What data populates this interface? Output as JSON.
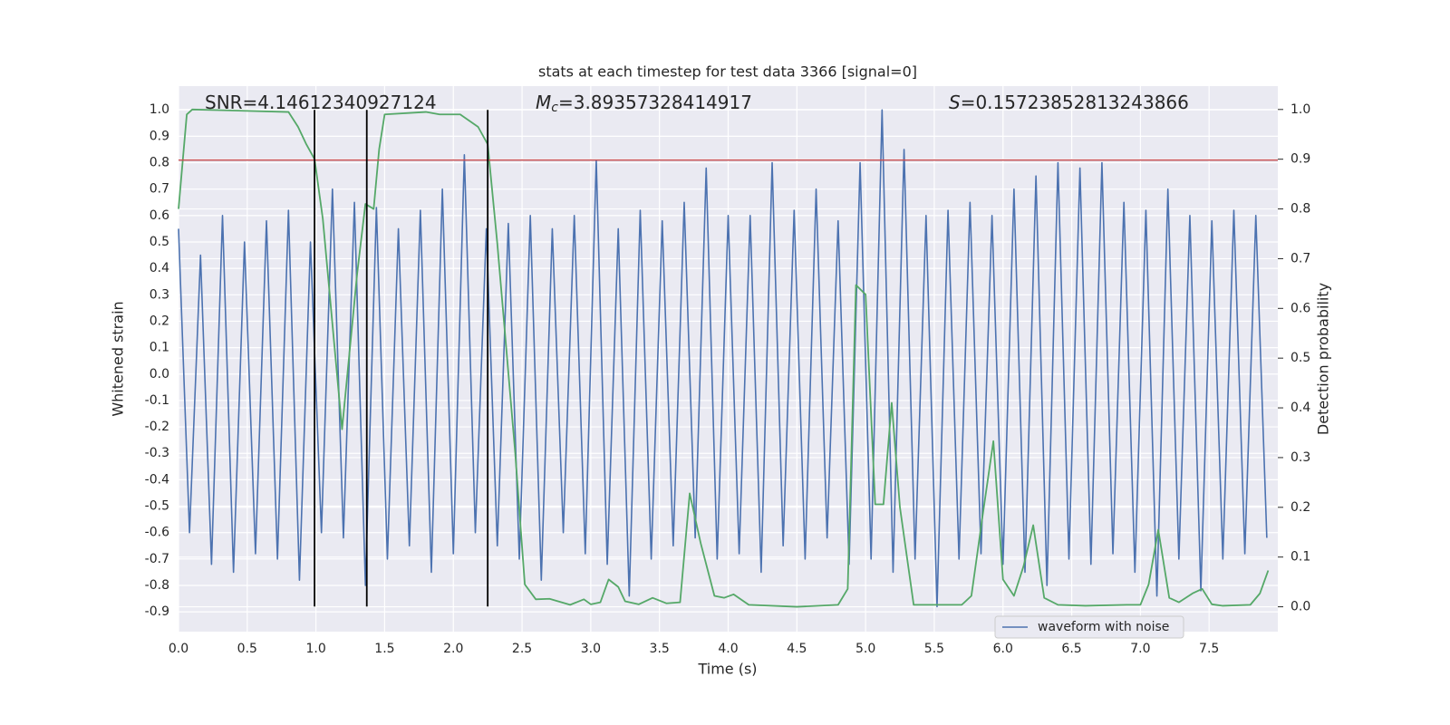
{
  "chart_data": {
    "type": "line",
    "title": "stats at each timestep for test data 3366 [signal=0]",
    "xlabel": "Time (s)",
    "ylabel": "Whitened strain",
    "y2label": "Detection probability",
    "annotations": [
      {
        "text": "SNR=4.14612340927124"
      },
      {
        "symbol": "M",
        "subscript": "c",
        "text": "=3.89357328414917"
      },
      {
        "symbol": "S",
        "text": "=0.15723852813243866"
      }
    ],
    "xlim": [
      0,
      8
    ],
    "ylim": [
      -0.975,
      1.09
    ],
    "y2lim": [
      -0.05,
      1.047
    ],
    "xticks": [
      {
        "value": 0,
        "label": "0.0"
      },
      0.5,
      {
        "value": 1,
        "label": "1.0"
      },
      1.5,
      {
        "value": 2,
        "label": "2.0"
      },
      2.5,
      {
        "value": 3,
        "label": "3.0"
      },
      3.5,
      {
        "value": 4,
        "label": "4.0"
      },
      4.5,
      {
        "value": 5,
        "label": "5.0"
      },
      5.5,
      {
        "value": 6,
        "label": "6.0"
      },
      6.5,
      {
        "value": 7,
        "label": "7.0"
      },
      7.5
    ],
    "yticks": [
      -0.9,
      -0.8,
      -0.7,
      -0.6,
      -0.5,
      -0.4,
      -0.3,
      -0.2,
      -0.1,
      {
        "value": 0,
        "label": "0.0"
      },
      0.1,
      0.2,
      0.3,
      0.4,
      0.5,
      0.6,
      0.7,
      0.8,
      0.9,
      {
        "value": 1,
        "label": "1.0"
      }
    ],
    "y2ticks": [
      {
        "value": 0,
        "label": "0.0"
      },
      0.1,
      0.2,
      0.3,
      0.4,
      0.5,
      0.6,
      0.7,
      0.8,
      0.9,
      {
        "value": 1,
        "label": "1.0"
      }
    ],
    "grid": true,
    "legend_position": "lower right",
    "series": [
      {
        "name": "waveform with noise",
        "color": "#4c72b0",
        "x": [
          0,
          0.08,
          0.16,
          0.24,
          0.32,
          0.4,
          0.48,
          0.56,
          0.64,
          0.72,
          0.8,
          0.88,
          0.96,
          1.04,
          1.12,
          1.2,
          1.28,
          1.36,
          1.44,
          1.52,
          1.6,
          1.68,
          1.76,
          1.84,
          1.92,
          2,
          2.08,
          2.16,
          2.24,
          2.32,
          2.4,
          2.48,
          2.56,
          2.64,
          2.72,
          2.8,
          2.88,
          2.96,
          3.04,
          3.12,
          3.2,
          3.28,
          3.36,
          3.44,
          3.52,
          3.6,
          3.68,
          3.76,
          3.84,
          3.92,
          4,
          4.08,
          4.16,
          4.24,
          4.32,
          4.4,
          4.48,
          4.56,
          4.64,
          4.72,
          4.8,
          4.88,
          4.96,
          5.04,
          5.12,
          5.2,
          5.28,
          5.36,
          5.44,
          5.52,
          5.6,
          5.68,
          5.76,
          5.84,
          5.92,
          6,
          6.08,
          6.16,
          6.24,
          6.32,
          6.4,
          6.48,
          6.56,
          6.64,
          6.72,
          6.8,
          6.88,
          6.96,
          7.04,
          7.12,
          7.2,
          7.28,
          7.36,
          7.44,
          7.52,
          7.6,
          7.68,
          7.76,
          7.84,
          7.92
        ],
        "values": [
          0.55,
          -0.6,
          0.45,
          -0.72,
          0.6,
          -0.75,
          0.5,
          -0.68,
          0.58,
          -0.7,
          0.62,
          -0.78,
          0.5,
          -0.6,
          0.7,
          -0.62,
          0.65,
          -0.8,
          0.63,
          -0.7,
          0.55,
          -0.65,
          0.62,
          -0.75,
          0.7,
          -0.68,
          0.83,
          -0.6,
          0.55,
          -0.65,
          0.57,
          -0.7,
          0.6,
          -0.78,
          0.55,
          -0.6,
          0.6,
          -0.68,
          0.81,
          -0.72,
          0.55,
          -0.84,
          0.62,
          -0.7,
          0.58,
          -0.65,
          0.65,
          -0.62,
          0.78,
          -0.7,
          0.6,
          -0.68,
          0.6,
          -0.75,
          0.8,
          -0.65,
          0.62,
          -0.7,
          0.7,
          -0.62,
          0.58,
          -0.72,
          0.8,
          -0.7,
          1.0,
          -0.75,
          0.85,
          -0.7,
          0.6,
          -0.88,
          0.62,
          -0.7,
          0.65,
          -0.68,
          0.6,
          -0.72,
          0.7,
          -0.75,
          0.75,
          -0.8,
          0.8,
          -0.7,
          0.78,
          -0.72,
          0.8,
          -0.68,
          0.65,
          -0.75,
          0.62,
          -0.84,
          0.7,
          -0.7,
          0.6,
          -0.82,
          0.58,
          -0.7,
          0.62,
          -0.68,
          0.6,
          -0.62
        ]
      },
      {
        "color": "#55a868",
        "axis": "y2",
        "x": [
          0,
          0.06,
          0.1,
          0.8,
          0.87,
          0.93,
          0.99,
          1.05,
          1.19,
          1.3,
          1.36,
          1.42,
          1.46,
          1.5,
          1.8,
          1.9,
          2.05,
          2.18,
          2.25,
          2.32,
          2.45,
          2.52,
          2.6,
          2.7,
          2.85,
          2.95,
          3,
          3.07,
          3.13,
          3.2,
          3.25,
          3.35,
          3.45,
          3.55,
          3.65,
          3.72,
          3.8,
          3.9,
          3.97,
          4.04,
          4.15,
          4.5,
          4.8,
          4.87,
          4.93,
          5,
          5.07,
          5.13,
          5.19,
          5.25,
          5.35,
          5.5,
          5.7,
          5.77,
          5.85,
          5.93,
          6,
          6.08,
          6.15,
          6.22,
          6.3,
          6.4,
          6.6,
          6.9,
          7,
          7.06,
          7.13,
          7.21,
          7.28,
          7.38,
          7.45,
          7.52,
          7.6,
          7.8,
          7.87,
          7.93
        ],
        "values": [
          0.8,
          0.99,
          1.0,
          0.995,
          0.965,
          0.93,
          0.9,
          0.78,
          0.357,
          0.67,
          0.81,
          0.8,
          0.92,
          0.99,
          0.995,
          0.99,
          0.99,
          0.965,
          0.93,
          0.73,
          0.31,
          0.045,
          0.015,
          0.016,
          0.004,
          0.015,
          0.005,
          0.009,
          0.055,
          0.04,
          0.011,
          0.005,
          0.018,
          0.007,
          0.009,
          0.228,
          0.128,
          0.022,
          0.018,
          0.025,
          0.004,
          0.0,
          0.004,
          0.036,
          0.647,
          0.628,
          0.206,
          0.206,
          0.41,
          0.2,
          0.004,
          0.004,
          0.004,
          0.022,
          0.18,
          0.333,
          0.055,
          0.022,
          0.082,
          0.164,
          0.018,
          0.004,
          0.002,
          0.004,
          0.004,
          0.045,
          0.155,
          0.018,
          0.009,
          0.027,
          0.036,
          0.005,
          0.002,
          0.004,
          0.027,
          0.073
        ]
      }
    ],
    "hline": {
      "value": 0.81,
      "color": "#c44e52"
    },
    "vlines": {
      "x": [
        0.99,
        1.37,
        2.25
      ],
      "ymin": -0.88,
      "ymax": 1.0,
      "color": "#000000"
    }
  }
}
